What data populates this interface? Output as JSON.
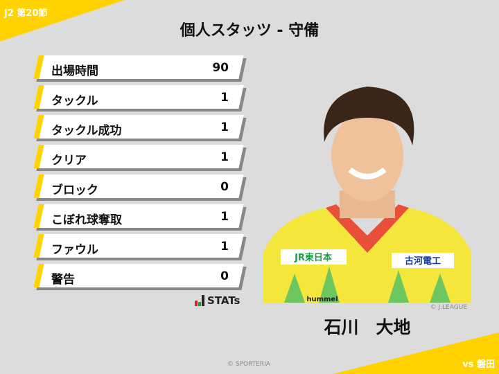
{
  "header": {
    "round": "J2 第20節",
    "title": "個人スタッツ - 守備",
    "opponent": "vs 磐田"
  },
  "stats": [
    {
      "label": "出場時間",
      "value": "90"
    },
    {
      "label": "タックル",
      "value": "1"
    },
    {
      "label": "タックル成功",
      "value": "1"
    },
    {
      "label": "クリア",
      "value": "1"
    },
    {
      "label": "ブロック",
      "value": "0"
    },
    {
      "label": "こぼれ球奪取",
      "value": "1"
    },
    {
      "label": "ファウル",
      "value": "1"
    },
    {
      "label": "警告",
      "value": "0"
    }
  ],
  "brand": {
    "stats_logo": "STATs",
    "photo_credit": "© J.LEAGUE",
    "copyright": "© SPORTERIA"
  },
  "player": {
    "name": "石川　大地",
    "jersey_sponsors": [
      "JR東日本",
      "古河電工",
      "hummel"
    ]
  },
  "colors": {
    "accent": "#ffd200",
    "background": "#dcdcdc",
    "jersey": "#f5e63c"
  }
}
